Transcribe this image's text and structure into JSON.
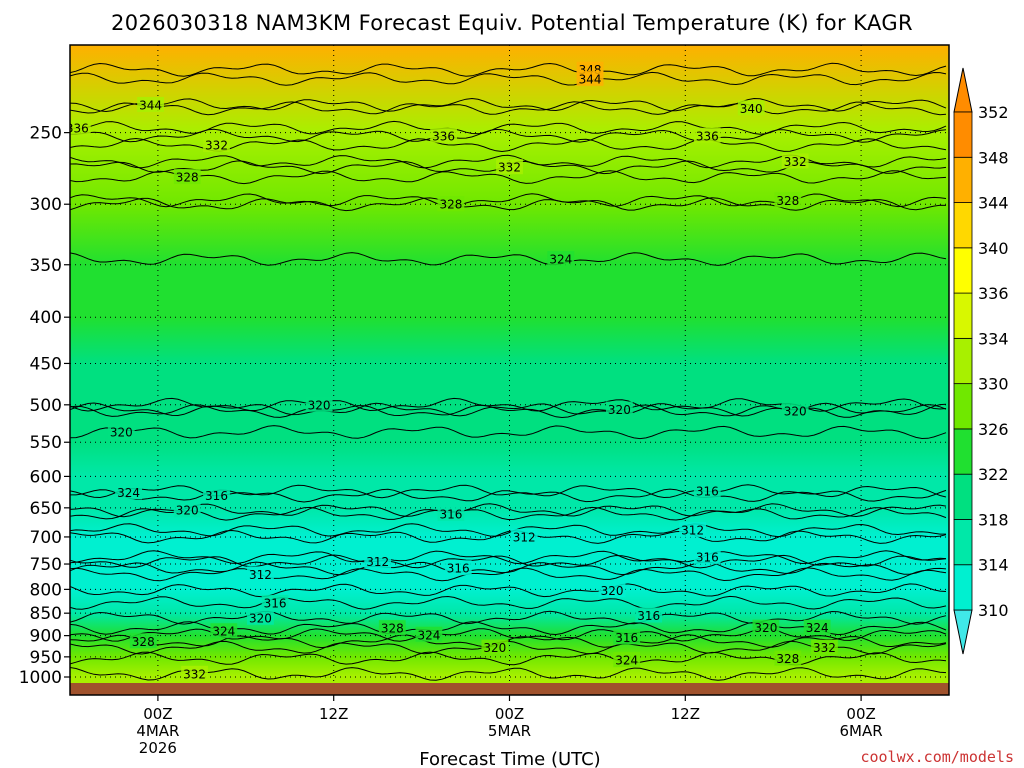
{
  "title": "2026030318 NAM3KM Forecast Equiv. Potential Temperature (K) for KAGR",
  "credit": "coolwx.com/models",
  "chart_data": {
    "type": "heatmap",
    "title": "2026030318 NAM3KM Forecast Equiv. Potential Temperature (K) for KAGR",
    "xlabel": "Forecast Time (UTC)",
    "ylabel": "",
    "grid": true,
    "x_start_hour": -6,
    "x_end_hour": 54,
    "y_range_hpa": [
      1000,
      200
    ],
    "y_scale": "log",
    "y_ticks": [
      250,
      300,
      350,
      400,
      450,
      500,
      550,
      600,
      650,
      700,
      750,
      800,
      850,
      900,
      950,
      1000
    ],
    "x_ticks": [
      {
        "hour": 0,
        "lines": [
          "00Z",
          "4MAR",
          "2026"
        ]
      },
      {
        "hour": 12,
        "lines": [
          "12Z"
        ]
      },
      {
        "hour": 24,
        "lines": [
          "00Z",
          "5MAR"
        ]
      },
      {
        "hour": 36,
        "lines": [
          "12Z"
        ]
      },
      {
        "hour": 48,
        "lines": [
          "00Z",
          "6MAR"
        ]
      }
    ],
    "colorbar": {
      "labels": [
        310,
        314,
        318,
        322,
        326,
        330,
        334,
        336,
        340,
        344,
        348,
        352
      ],
      "colors": [
        "#40e8e8",
        "#00f0d0",
        "#00e8a8",
        "#00e080",
        "#20e030",
        "#70e800",
        "#a8f000",
        "#d8f800",
        "#ffff00",
        "#ffd800",
        "#ffb000",
        "#ff8c00"
      ],
      "extend": "both"
    },
    "profile": [
      {
        "p": 1000,
        "theta_e": 332
      },
      {
        "p": 950,
        "theta_e": 330
      },
      {
        "p": 900,
        "theta_e": 326
      },
      {
        "p": 850,
        "theta_e": 318
      },
      {
        "p": 800,
        "theta_e": 314
      },
      {
        "p": 750,
        "theta_e": 313
      },
      {
        "p": 700,
        "theta_e": 312
      },
      {
        "p": 650,
        "theta_e": 316
      },
      {
        "p": 600,
        "theta_e": 318
      },
      {
        "p": 550,
        "theta_e": 320
      },
      {
        "p": 500,
        "theta_e": 321
      },
      {
        "p": 450,
        "theta_e": 322
      },
      {
        "p": 400,
        "theta_e": 323
      },
      {
        "p": 350,
        "theta_e": 324
      },
      {
        "p": 300,
        "theta_e": 327
      },
      {
        "p": 250,
        "theta_e": 334
      },
      {
        "p": 200,
        "theta_e": 348
      }
    ],
    "contour_labels": [
      {
        "text": "348",
        "hour": 29.5,
        "p": 213
      },
      {
        "text": "344",
        "hour": 29.5,
        "p": 218
      },
      {
        "text": "344",
        "hour": -0.5,
        "p": 233
      },
      {
        "text": "340",
        "hour": 40.5,
        "p": 235
      },
      {
        "text": "336",
        "hour": -5.5,
        "p": 247
      },
      {
        "text": "336",
        "hour": 19.5,
        "p": 252
      },
      {
        "text": "336",
        "hour": 37.5,
        "p": 252
      },
      {
        "text": "332",
        "hour": 4,
        "p": 258
      },
      {
        "text": "332",
        "hour": 24,
        "p": 273
      },
      {
        "text": "332",
        "hour": 43.5,
        "p": 269
      },
      {
        "text": "328",
        "hour": 2,
        "p": 280
      },
      {
        "text": "328",
        "hour": 20,
        "p": 300
      },
      {
        "text": "328",
        "hour": 43,
        "p": 297
      },
      {
        "text": "324",
        "hour": 27.5,
        "p": 345
      },
      {
        "text": "320",
        "hour": 11,
        "p": 500
      },
      {
        "text": "320",
        "hour": -2.5,
        "p": 536
      },
      {
        "text": "320",
        "hour": 31.5,
        "p": 506
      },
      {
        "text": "320",
        "hour": 43.5,
        "p": 508
      },
      {
        "text": "316",
        "hour": 37.5,
        "p": 623
      },
      {
        "text": "324",
        "hour": -2,
        "p": 625
      },
      {
        "text": "316",
        "hour": 4,
        "p": 630
      },
      {
        "text": "320",
        "hour": 2,
        "p": 654
      },
      {
        "text": "316",
        "hour": 20,
        "p": 660
      },
      {
        "text": "312",
        "hour": 36.5,
        "p": 688
      },
      {
        "text": "312",
        "hour": 25,
        "p": 700
      },
      {
        "text": "312",
        "hour": 15,
        "p": 745
      },
      {
        "text": "316",
        "hour": 37.5,
        "p": 737
      },
      {
        "text": "316",
        "hour": 20.5,
        "p": 758
      },
      {
        "text": "312",
        "hour": 7,
        "p": 770
      },
      {
        "text": "320",
        "hour": 31,
        "p": 802
      },
      {
        "text": "316",
        "hour": 8,
        "p": 828
      },
      {
        "text": "320",
        "hour": 7,
        "p": 860
      },
      {
        "text": "316",
        "hour": 33.5,
        "p": 855
      },
      {
        "text": "328",
        "hour": 16,
        "p": 883
      },
      {
        "text": "320",
        "hour": 41.5,
        "p": 882
      },
      {
        "text": "324",
        "hour": 45,
        "p": 882
      },
      {
        "text": "324",
        "hour": 4.5,
        "p": 890
      },
      {
        "text": "324",
        "hour": 18.5,
        "p": 898
      },
      {
        "text": "316",
        "hour": 32,
        "p": 904
      },
      {
        "text": "328",
        "hour": -1,
        "p": 913
      },
      {
        "text": "320",
        "hour": 23,
        "p": 928
      },
      {
        "text": "332",
        "hour": 45.5,
        "p": 928
      },
      {
        "text": "328",
        "hour": 43,
        "p": 954
      },
      {
        "text": "324",
        "hour": 32,
        "p": 958
      },
      {
        "text": "332",
        "hour": 2.5,
        "p": 992
      }
    ]
  }
}
